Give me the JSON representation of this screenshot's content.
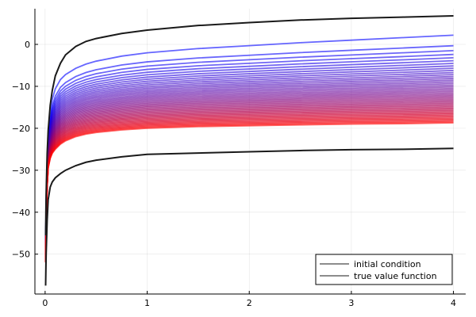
{
  "chart_data": {
    "type": "line",
    "title": "",
    "xlabel": "",
    "ylabel": "",
    "xlim": [
      -0.1,
      4.12
    ],
    "ylim": [
      -59.5,
      8.5
    ],
    "x_ticks": [
      0,
      1,
      2,
      3,
      4
    ],
    "y_ticks": [
      -50,
      -40,
      -30,
      -20,
      -10,
      0
    ],
    "grid": true,
    "legend_position": "bottom-right",
    "legend": [
      {
        "label": "initial condition",
        "color": "#1a1a1a"
      },
      {
        "label": "true value function",
        "color": "#1a1a1a"
      }
    ],
    "x": [
      0.005,
      0.01,
      0.02,
      0.03,
      0.05,
      0.07,
      0.1,
      0.15,
      0.2,
      0.3,
      0.4,
      0.5,
      0.75,
      1.0,
      1.5,
      2.0,
      2.5,
      3.0,
      3.5,
      4.0
    ],
    "iteration_series": {
      "count": 48,
      "color_start": "#0000ff",
      "color_end": "#ff0000",
      "opacity": 0.6,
      "first": [
        -47.5,
        -37.5,
        -27.5,
        -22.3,
        -16.6,
        -13.1,
        -10.6,
        -8.4,
        -7.2,
        -5.7,
        -4.7,
        -4.0,
        -2.8,
        -2.0,
        -1.0,
        -0.3,
        0.4,
        1.0,
        1.6,
        2.2
      ],
      "last": [
        -52.0,
        -43.0,
        -34.0,
        -29.5,
        -27.2,
        -26.0,
        -25.0,
        -23.8,
        -23.0,
        -22.0,
        -21.4,
        -21.0,
        -20.4,
        -20.0,
        -19.6,
        -19.4,
        -19.2,
        -19.0,
        -18.9,
        -18.7
      ]
    },
    "series": [
      {
        "name": "initial condition",
        "color": "#1a1a1a",
        "values": [
          -57.5,
          -50.0,
          -42.0,
          -37.0,
          -34.0,
          -32.8,
          -31.8,
          -30.8,
          -30.0,
          -28.9,
          -28.1,
          -27.6,
          -26.8,
          -26.2,
          -25.9,
          -25.6,
          -25.3,
          -25.1,
          -25.0,
          -24.8
        ]
      },
      {
        "name": "true value function",
        "color": "#1a1a1a",
        "values": [
          -45.5,
          -36.0,
          -26.0,
          -20.5,
          -14.5,
          -11.0,
          -7.5,
          -4.5,
          -2.5,
          -0.5,
          0.7,
          1.4,
          2.6,
          3.4,
          4.5,
          5.2,
          5.8,
          6.2,
          6.5,
          6.8
        ]
      }
    ]
  }
}
